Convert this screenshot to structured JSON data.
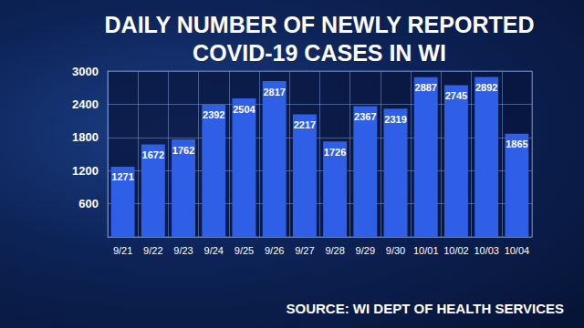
{
  "chart_data": {
    "type": "bar",
    "title": "DAILY NUMBER OF NEWLY REPORTED\nCOVID-19 CASES IN WI",
    "annotations": [
      "SOURCE: WI DEPT OF HEALTH SERVICES"
    ],
    "categories": [
      "9/21",
      "9/22",
      "9/23",
      "9/24",
      "9/25",
      "9/26",
      "9/27",
      "9/28",
      "9/29",
      "9/30",
      "10/01",
      "10/02",
      "10/03",
      "10/04"
    ],
    "values": [
      1271,
      1672,
      1762,
      2392,
      2504,
      2817,
      2217,
      1726,
      2367,
      2319,
      2887,
      2745,
      2892,
      1865
    ],
    "color": "#2f5fe6",
    "ylim": [
      0,
      3000
    ],
    "yticks": [
      600,
      1200,
      1800,
      2400,
      3000
    ],
    "grid": true,
    "data_labels": true
  }
}
